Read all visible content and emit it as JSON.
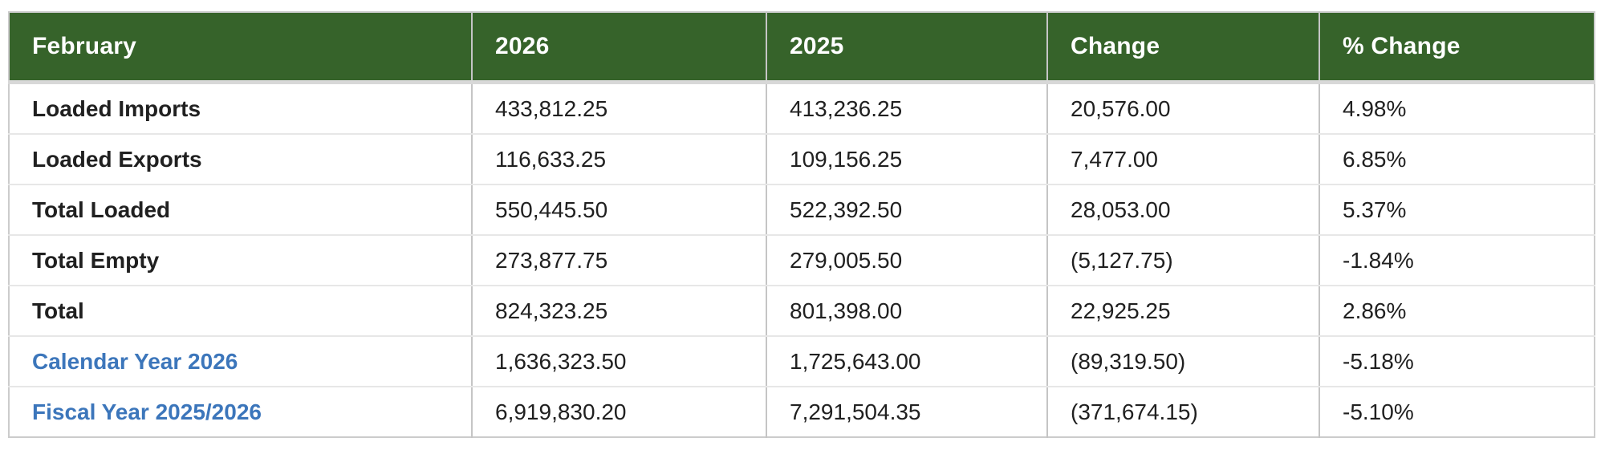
{
  "table": {
    "columns": [
      {
        "label": "February"
      },
      {
        "label": "2026"
      },
      {
        "label": "2025"
      },
      {
        "label": "Change"
      },
      {
        "label": "% Change"
      }
    ],
    "rows": [
      {
        "label": "Loaded Imports",
        "y2026": "433,812.25",
        "y2025": "413,236.25",
        "change": "20,576.00",
        "pct_change": "4.98%"
      },
      {
        "label": "Loaded Exports",
        "y2026": "116,633.25",
        "y2025": "109,156.25",
        "change": "7,477.00",
        "pct_change": "6.85%"
      },
      {
        "label": "Total Loaded",
        "y2026": "550,445.50",
        "y2025": "522,392.50",
        "change": "28,053.00",
        "pct_change": "5.37%"
      },
      {
        "label": "Total Empty",
        "y2026": "273,877.75",
        "y2025": "279,005.50",
        "change": "(5,127.75)",
        "pct_change": "-1.84%"
      },
      {
        "label": "Total",
        "y2026": "824,323.25",
        "y2025": "801,398.00",
        "change": "22,925.25",
        "pct_change": "2.86%"
      },
      {
        "label": "Calendar Year 2026",
        "y2026": "1,636,323.50",
        "y2025": "1,725,643.00",
        "change": "(89,319.50)",
        "pct_change": "-5.18%"
      },
      {
        "label": "Fiscal Year 2025/2026",
        "y2026": "6,919,830.20",
        "y2025": "7,291,504.35",
        "change": "(371,674.15)",
        "pct_change": "-5.10%"
      }
    ],
    "colors": {
      "header_bg": "#36632a",
      "header_text": "#ffffff",
      "link_blue": "#3c76bb",
      "body_text": "#202020",
      "column_border": "#c5c5c5",
      "row_border": "#e7e7e7"
    }
  }
}
